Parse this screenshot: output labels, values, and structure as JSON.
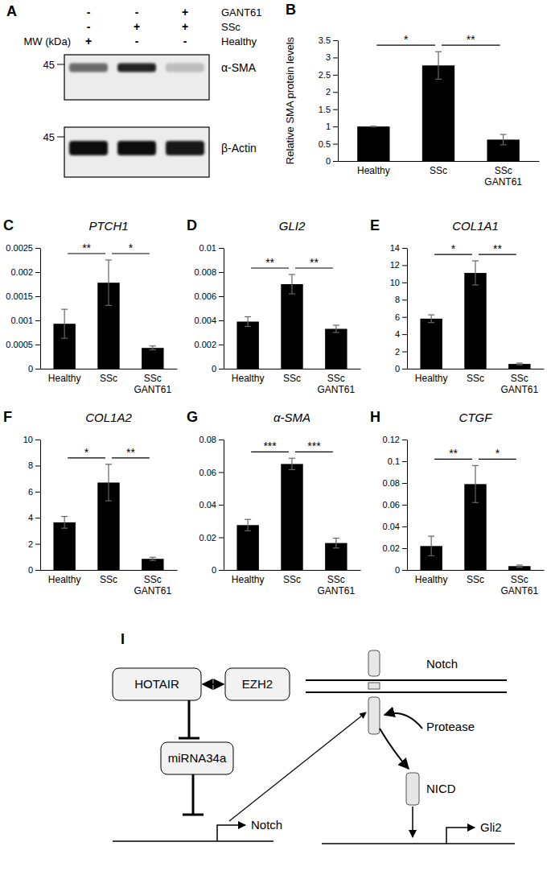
{
  "blot": {
    "panel": "A",
    "mw_label": "MW (kDa)",
    "conditions": [
      {
        "label": "GANT61",
        "signs": [
          "-",
          "-",
          "+"
        ]
      },
      {
        "label": "SSc",
        "signs": [
          "-",
          "+",
          "+"
        ]
      },
      {
        "label": "Healthy",
        "signs": [
          "+",
          "-",
          "-"
        ]
      }
    ],
    "rows": [
      {
        "label": "α-SMA",
        "marker": 45,
        "band_intensity": [
          0.55,
          0.85,
          0.2
        ]
      },
      {
        "label": "β-Actin",
        "marker": 45,
        "band_intensity": [
          0.95,
          0.95,
          0.9
        ]
      }
    ]
  },
  "chart_data": [
    {
      "type": "bar",
      "panel": "B",
      "y_label": "Relative SMA protein levels",
      "categories": [
        "Healthy",
        "SSc",
        "SSc GANT61"
      ],
      "values": [
        1.0,
        2.77,
        0.62
      ],
      "errors": [
        0.01,
        0.4,
        0.15
      ],
      "color": "#000000",
      "ylim": [
        0,
        3.5
      ],
      "yticks": [
        0,
        0.5,
        1,
        1.5,
        2,
        2.5,
        3,
        3.5
      ],
      "annotations": [
        {
          "text": "*",
          "between": [
            0,
            1
          ]
        },
        {
          "text": "**",
          "between": [
            1,
            2
          ]
        }
      ]
    },
    {
      "type": "bar",
      "panel": "C",
      "title": "PTCH1",
      "categories": [
        "Healthy",
        "SSc",
        "SSc GANT61"
      ],
      "values": [
        0.00093,
        0.00178,
        0.00043
      ],
      "errors": [
        0.0003,
        0.00047,
        4e-05
      ],
      "color": "#000000",
      "ylim": [
        0,
        0.0025
      ],
      "yticks": [
        0,
        0.0005,
        0.001,
        0.0015,
        0.002,
        0.0025
      ],
      "annotations": [
        {
          "text": "**",
          "between": [
            0,
            1
          ]
        },
        {
          "text": "*",
          "between": [
            1,
            2
          ]
        }
      ]
    },
    {
      "type": "bar",
      "panel": "D",
      "title": "GLI2",
      "categories": [
        "Healthy",
        "SSc",
        "SSc GANT61"
      ],
      "values": [
        0.0039,
        0.007,
        0.0033
      ],
      "errors": [
        0.0004,
        0.0008,
        0.0003
      ],
      "color": "#000000",
      "ylim": [
        0,
        0.01
      ],
      "yticks": [
        0,
        0.002,
        0.004,
        0.006,
        0.008,
        0.01
      ],
      "annotations": [
        {
          "text": "**",
          "between": [
            0,
            1
          ]
        },
        {
          "text": "**",
          "between": [
            1,
            2
          ]
        }
      ]
    },
    {
      "type": "bar",
      "panel": "E",
      "title": "COL1A1",
      "categories": [
        "Healthy",
        "SSc",
        "SSc GANT61"
      ],
      "values": [
        5.8,
        11.1,
        0.55
      ],
      "errors": [
        0.45,
        1.4,
        0.1
      ],
      "color": "#000000",
      "ylim": [
        0,
        14
      ],
      "yticks": [
        0,
        2,
        4,
        6,
        8,
        10,
        12,
        14
      ],
      "annotations": [
        {
          "text": "*",
          "between": [
            0,
            1
          ]
        },
        {
          "text": "**",
          "between": [
            1,
            2
          ]
        }
      ]
    },
    {
      "type": "bar",
      "panel": "F",
      "title": "COL1A2",
      "categories": [
        "Healthy",
        "SSc",
        "SSc GANT61"
      ],
      "values": [
        3.65,
        6.7,
        0.85
      ],
      "errors": [
        0.45,
        1.4,
        0.12
      ],
      "color": "#000000",
      "ylim": [
        0,
        10
      ],
      "yticks": [
        0,
        2,
        4,
        6,
        8,
        10
      ],
      "annotations": [
        {
          "text": "*",
          "between": [
            0,
            1
          ]
        },
        {
          "text": "**",
          "between": [
            1,
            2
          ]
        }
      ]
    },
    {
      "type": "bar",
      "panel": "G",
      "title": "α-SMA",
      "categories": [
        "Healthy",
        "SSc",
        "SSc GANT61"
      ],
      "values": [
        0.0275,
        0.065,
        0.0165
      ],
      "errors": [
        0.0035,
        0.0035,
        0.003
      ],
      "color": "#000000",
      "ylim": [
        0,
        0.08
      ],
      "yticks": [
        0,
        0.02,
        0.04,
        0.06,
        0.08
      ],
      "annotations": [
        {
          "text": "***",
          "between": [
            0,
            1
          ]
        },
        {
          "text": "***",
          "between": [
            1,
            2
          ]
        }
      ]
    },
    {
      "type": "bar",
      "panel": "H",
      "title": "CTGF",
      "categories": [
        "Healthy",
        "SSc",
        "SSc GANT61"
      ],
      "values": [
        0.022,
        0.079,
        0.0035
      ],
      "errors": [
        0.009,
        0.017,
        0.001
      ],
      "color": "#000000",
      "ylim": [
        0,
        0.12
      ],
      "yticks": [
        0,
        0.02,
        0.04,
        0.06,
        0.08,
        0.1,
        0.12
      ],
      "annotations": [
        {
          "text": "**",
          "between": [
            0,
            1
          ]
        },
        {
          "text": "*",
          "between": [
            1,
            2
          ]
        }
      ]
    }
  ],
  "diagram": {
    "panel": "I",
    "nodes": [
      "HOTAIR",
      "EZH2",
      "miRNA34a",
      "Notch",
      "Protease",
      "NICD",
      "Notch",
      "Gli2"
    ]
  }
}
